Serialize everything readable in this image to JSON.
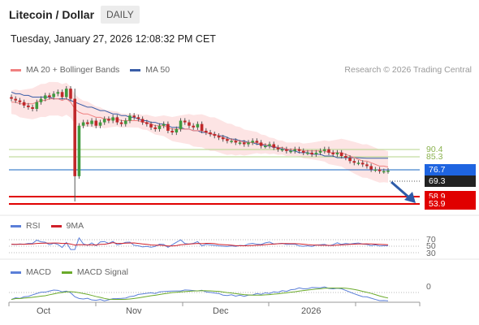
{
  "header": {
    "title": "Litecoin / Dollar",
    "timeframe": "DAILY",
    "datetime": "Tuesday, January 27, 2026 12:08:32 PM CET"
  },
  "legend": {
    "ma20_label": "MA 20 + Bollinger Bands",
    "ma50_label": "MA 50",
    "credit": "Research © 2026 Trading Central",
    "rsi_label": "RSI",
    "rsi_ma_label": "9MA",
    "macd_label": "MACD",
    "macd_signal_label": "MACD Signal"
  },
  "colors": {
    "ma20": "#f08080",
    "ma50": "#3a5ea8",
    "bollinger_fill": "#fde4e4",
    "bull_candle": "#3f9a3f",
    "bear_candle": "#c0282a",
    "resistance": "#9bc25a",
    "pivot": "#1565c0",
    "support": "#e00000",
    "last_price": "#222222",
    "rsi": "#5b7fd8",
    "macd": "#5b7fd8",
    "macd_signal": "#6aaa2a"
  },
  "price_levels": {
    "r2": "90.4",
    "r1": "85.3",
    "pivot": "76.7",
    "last": "69.3",
    "s1": "58.9",
    "s2": "53.9"
  },
  "rsi_levels": [
    "70",
    "50",
    "30"
  ],
  "macd_zero": "0",
  "x_axis": [
    "Oct",
    "Nov",
    "Dec",
    "2026"
  ],
  "chart_data": {
    "type": "candlestick",
    "x_range": [
      "Oct",
      "2026"
    ],
    "y_range": [
      50,
      120
    ],
    "close_series": [
      112,
      111,
      110,
      108,
      107,
      106,
      110,
      112,
      114,
      113,
      115,
      116,
      113,
      118,
      112,
      66,
      96,
      98,
      97,
      99,
      96,
      98,
      100,
      99,
      101,
      98,
      97,
      99,
      102,
      101,
      100,
      98,
      97,
      95,
      94,
      96,
      97,
      93,
      92,
      94,
      99,
      98,
      96,
      95,
      97,
      93,
      92,
      91,
      90,
      89,
      88,
      87,
      87,
      86,
      86,
      85,
      86,
      87,
      86,
      84,
      84,
      85,
      83,
      82,
      82,
      81,
      81,
      82,
      81,
      80,
      80,
      79,
      80,
      81,
      82,
      80,
      79,
      80,
      78,
      77,
      75,
      74,
      74,
      73,
      72,
      70,
      70,
      69,
      69,
      69.3
    ],
    "ma20_series": [
      110,
      110,
      109,
      109,
      109,
      109,
      110,
      111,
      111,
      112,
      112,
      112,
      111,
      112,
      110,
      106,
      104,
      103,
      103,
      102,
      101,
      101,
      100,
      100,
      100,
      100,
      99,
      99,
      99,
      99,
      99,
      98,
      98,
      97,
      96,
      96,
      96,
      95,
      94,
      94,
      94,
      94,
      94,
      93,
      93,
      93,
      92,
      91,
      91,
      90,
      89,
      88,
      88,
      87,
      87,
      86,
      86,
      86,
      86,
      85,
      85,
      84,
      84,
      83,
      83,
      82,
      82,
      82,
      82,
      81,
      81,
      81,
      81,
      81,
      81,
      80,
      80,
      80,
      80,
      79,
      78,
      77,
      76,
      75,
      75,
      74,
      73,
      72,
      72,
      71.5
    ],
    "ma50_series": [
      116,
      115,
      115,
      114,
      114,
      113,
      113,
      113,
      113,
      113,
      112,
      112,
      112,
      112,
      111,
      110,
      109,
      108,
      107,
      107,
      106,
      105,
      105,
      104,
      103,
      103,
      102,
      102,
      101,
      101,
      100,
      99,
      99,
      98,
      98,
      97,
      97,
      96,
      95,
      95,
      95,
      94,
      94,
      93,
      93,
      92,
      92,
      91,
      91,
      90,
      90,
      89,
      88,
      88,
      87,
      87,
      86,
      86,
      85,
      85,
      84,
      84,
      83,
      83,
      82,
      82,
      81,
      81,
      80,
      80,
      80,
      79,
      79,
      79,
      78,
      78,
      78,
      77,
      77,
      77,
      77,
      77,
      76.9,
      76.8,
      76.7,
      76.7,
      76.7,
      76.7,
      76.7,
      76.7
    ],
    "rsi_ref_levels": [
      70,
      50,
      30
    ],
    "macd_zero_line": 0
  }
}
